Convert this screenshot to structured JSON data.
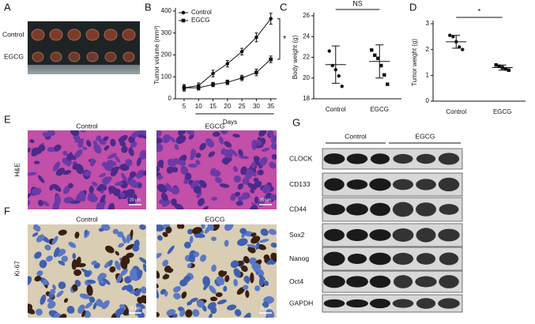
{
  "panels": [
    "A",
    "B",
    "C",
    "D",
    "E",
    "F",
    "G"
  ],
  "photo": {
    "rows": [
      "Control",
      "EGCG"
    ]
  },
  "chart_data": [
    {
      "type": "line",
      "y_label": "Tumor volume (mm³)",
      "x_label": "Days",
      "annotation": "*",
      "x": [
        5,
        10,
        15,
        20,
        25,
        30,
        35
      ],
      "xlim": [
        2,
        37
      ],
      "xticks": [
        5,
        10,
        15,
        20,
        25,
        30,
        35
      ],
      "ylim": [
        0,
        400
      ],
      "yticks": [
        0,
        100,
        200,
        300,
        400
      ],
      "legend": "top-left",
      "series": [
        {
          "name": "Control",
          "color": "#111111",
          "marker": "circle",
          "values": [
            50,
            60,
            115,
            160,
            215,
            280,
            365
          ],
          "errors": [
            15,
            12,
            15,
            15,
            15,
            20,
            25
          ]
        },
        {
          "name": "EGCG",
          "color": "#111111",
          "marker": "square",
          "values": [
            50,
            50,
            65,
            75,
            95,
            120,
            180
          ],
          "errors": [
            10,
            10,
            10,
            10,
            12,
            15,
            15
          ]
        }
      ]
    },
    {
      "type": "dot",
      "y_label": "Body weight (g)",
      "annotation": "NS",
      "categories": [
        "Control",
        "EGCG"
      ],
      "markers": [
        "circle",
        "square"
      ],
      "points": [
        [
          22.6,
          21.2,
          20.8,
          20.2,
          19.2
        ],
        [
          22.7,
          22.2,
          21.9,
          21.2,
          20.3,
          19.4
        ]
      ],
      "means": [
        21.3,
        21.6
      ],
      "sds": [
        1.8,
        1.6
      ],
      "ylim": [
        18,
        26
      ],
      "yticks": [
        18,
        20,
        22,
        24,
        26
      ]
    },
    {
      "type": "dot",
      "y_label": "Tumor weight (g)",
      "annotation": "*",
      "categories": [
        "Control",
        "EGCG"
      ],
      "markers": [
        "circle",
        "square"
      ],
      "points": [
        [
          2.55,
          2.5,
          2.3,
          2.1,
          2.0
        ],
        [
          1.4,
          1.35,
          1.3,
          1.25,
          1.2
        ]
      ],
      "means": [
        2.3,
        1.3
      ],
      "sds": [
        0.25,
        0.1
      ],
      "ylim": [
        0,
        3
      ],
      "yticks": [
        0,
        1,
        2,
        3
      ]
    }
  ],
  "he": {
    "columns": [
      "Control",
      "EGCG"
    ],
    "row": "H&E",
    "scale": "20 μm"
  },
  "ki67": {
    "columns": [
      "Control",
      "EGCG"
    ],
    "row": "Ki-67",
    "scale": "20 μm"
  },
  "blot": {
    "groups": [
      "Control",
      "EGCG"
    ],
    "proteins": [
      "CLOCK",
      "CD133",
      "CD44",
      "Sox2",
      "Nanog",
      "Oct4",
      "GAPDH"
    ]
  }
}
